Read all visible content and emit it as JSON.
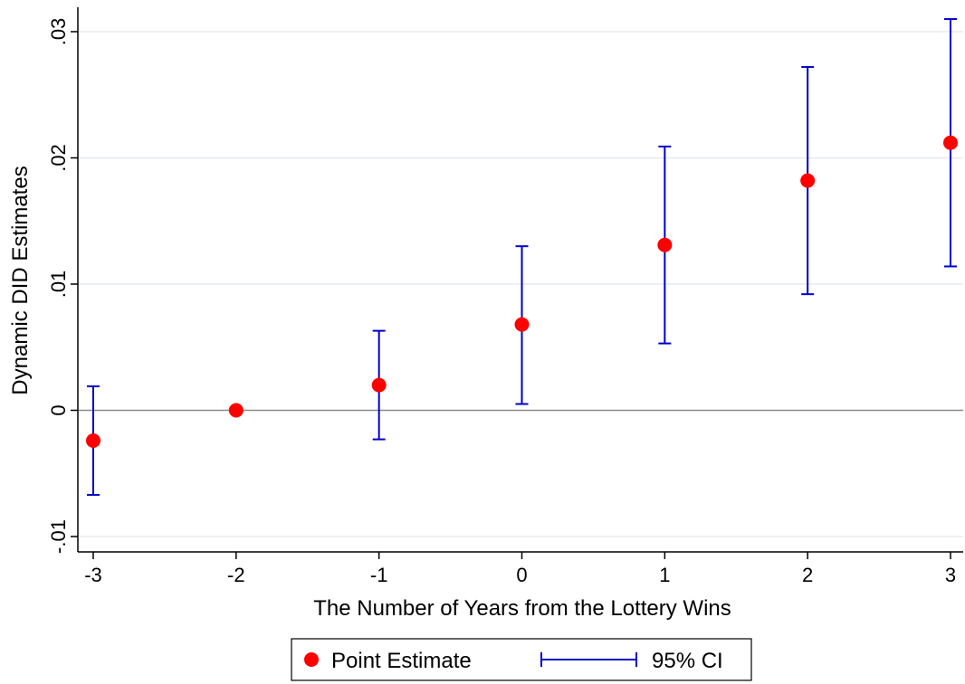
{
  "chart_data": {
    "type": "scatter",
    "xlabel": "The Number of Years from the Lottery Wins",
    "ylabel": "Dynamic DID Estimates",
    "xlim": [
      -3,
      3
    ],
    "ylim": [
      -0.01,
      0.03
    ],
    "x_ticks": [
      {
        "value": -3,
        "label": "-3"
      },
      {
        "value": -2,
        "label": "-2"
      },
      {
        "value": -1,
        "label": "-1"
      },
      {
        "value": 0,
        "label": "0"
      },
      {
        "value": 1,
        "label": "1"
      },
      {
        "value": 2,
        "label": "2"
      },
      {
        "value": 3,
        "label": "3"
      }
    ],
    "y_ticks": [
      {
        "value": -0.01,
        "label": "-.01"
      },
      {
        "value": 0,
        "label": "0"
      },
      {
        "value": 0.01,
        "label": ".01"
      },
      {
        "value": 0.02,
        "label": ".02"
      },
      {
        "value": 0.03,
        "label": ".03"
      }
    ],
    "grid": true,
    "reference_line": 0,
    "series": [
      {
        "name": "Point Estimate",
        "kind": "point",
        "color": "#ff0000",
        "x": [
          -3,
          -2,
          -1,
          0,
          1,
          2,
          3
        ],
        "y": [
          -0.0024,
          0.0,
          0.002,
          0.0068,
          0.0131,
          0.0182,
          0.0212
        ]
      },
      {
        "name": "95% CI",
        "kind": "errorbar",
        "color": "#0000cc",
        "x": [
          -3,
          -1,
          0,
          1,
          2,
          3
        ],
        "low": [
          -0.0067,
          -0.0023,
          0.0005,
          0.0053,
          0.0092,
          0.0114
        ],
        "high": [
          0.0019,
          0.0063,
          0.013,
          0.0209,
          0.0272,
          0.031
        ]
      }
    ],
    "legend": {
      "position": "bottom",
      "items": [
        "Point Estimate",
        "95% CI"
      ]
    }
  }
}
